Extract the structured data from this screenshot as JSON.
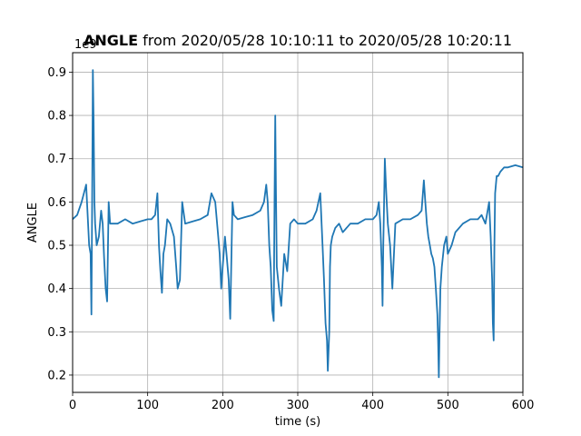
{
  "chart_data": {
    "type": "line",
    "title": {
      "bold": "ANGLE",
      "rest": " from 2020/05/28 10:10:11 to 2020/05/28 10:20:11"
    },
    "xlabel": "time (s)",
    "ylabel": "ANGLE",
    "y_offset_label": "1e9",
    "xlim": [
      0,
      600
    ],
    "ylim": [
      0.16,
      0.945
    ],
    "xticks": [
      0,
      100,
      200,
      300,
      400,
      500,
      600
    ],
    "yticks": [
      0.2,
      0.3,
      0.4,
      0.5,
      0.6,
      0.7,
      0.8,
      0.9
    ],
    "grid": true,
    "line_color": "#1f77b4",
    "series": [
      {
        "x": [
          0,
          6,
          12,
          18,
          22,
          24,
          25,
          26,
          27,
          28,
          29,
          30,
          32,
          35,
          38,
          40,
          42,
          44,
          46,
          48,
          50,
          55,
          60,
          70,
          80,
          90,
          100,
          105,
          110,
          113,
          115,
          117,
          119,
          121,
          123,
          126,
          130,
          135,
          138,
          140,
          143,
          146,
          150,
          160,
          170,
          180,
          185,
          190,
          194,
          196,
          198,
          200,
          203,
          205,
          208,
          210,
          213,
          215,
          220,
          230,
          240,
          250,
          255,
          258,
          260,
          262,
          264,
          266,
          268,
          269,
          270,
          271,
          272,
          275,
          278,
          282,
          286,
          290,
          295,
          300,
          310,
          320,
          325,
          330,
          333,
          335,
          337,
          339,
          340,
          342,
          343,
          344,
          346,
          350,
          355,
          360,
          370,
          380,
          390,
          400,
          405,
          408,
          410,
          412,
          413,
          414,
          415,
          416,
          418,
          420,
          423,
          426,
          430,
          440,
          450,
          460,
          465,
          468,
          470,
          472,
          474,
          476,
          478,
          480,
          482,
          484,
          486,
          487,
          488,
          489,
          490,
          492,
          495,
          498,
          500,
          505,
          510,
          520,
          530,
          540,
          545,
          550,
          555,
          557,
          559,
          560,
          561,
          562,
          563,
          565,
          567,
          570,
          575,
          580,
          590,
          600
        ],
        "values": [
          0.56,
          0.57,
          0.6,
          0.64,
          0.5,
          0.48,
          0.34,
          0.6,
          0.905,
          0.79,
          0.6,
          0.55,
          0.5,
          0.52,
          0.58,
          0.55,
          0.47,
          0.4,
          0.37,
          0.6,
          0.55,
          0.55,
          0.55,
          0.56,
          0.55,
          0.555,
          0.56,
          0.56,
          0.57,
          0.62,
          0.5,
          0.44,
          0.39,
          0.48,
          0.5,
          0.56,
          0.55,
          0.52,
          0.45,
          0.4,
          0.42,
          0.6,
          0.55,
          0.555,
          0.56,
          0.57,
          0.62,
          0.6,
          0.52,
          0.48,
          0.4,
          0.45,
          0.52,
          0.48,
          0.42,
          0.33,
          0.6,
          0.57,
          0.56,
          0.565,
          0.57,
          0.58,
          0.6,
          0.64,
          0.6,
          0.5,
          0.45,
          0.35,
          0.325,
          0.6,
          0.8,
          0.62,
          0.45,
          0.4,
          0.36,
          0.48,
          0.44,
          0.55,
          0.56,
          0.55,
          0.55,
          0.56,
          0.58,
          0.62,
          0.5,
          0.42,
          0.32,
          0.28,
          0.21,
          0.3,
          0.45,
          0.5,
          0.52,
          0.54,
          0.55,
          0.53,
          0.55,
          0.55,
          0.56,
          0.56,
          0.57,
          0.6,
          0.55,
          0.45,
          0.36,
          0.5,
          0.6,
          0.7,
          0.62,
          0.55,
          0.5,
          0.4,
          0.55,
          0.56,
          0.56,
          0.57,
          0.58,
          0.65,
          0.6,
          0.55,
          0.52,
          0.5,
          0.48,
          0.47,
          0.45,
          0.4,
          0.34,
          0.28,
          0.195,
          0.3,
          0.4,
          0.45,
          0.5,
          0.52,
          0.48,
          0.5,
          0.53,
          0.55,
          0.56,
          0.56,
          0.57,
          0.55,
          0.6,
          0.52,
          0.42,
          0.32,
          0.28,
          0.5,
          0.62,
          0.66,
          0.66,
          0.67,
          0.68,
          0.68,
          0.685,
          0.68
        ]
      }
    ]
  }
}
